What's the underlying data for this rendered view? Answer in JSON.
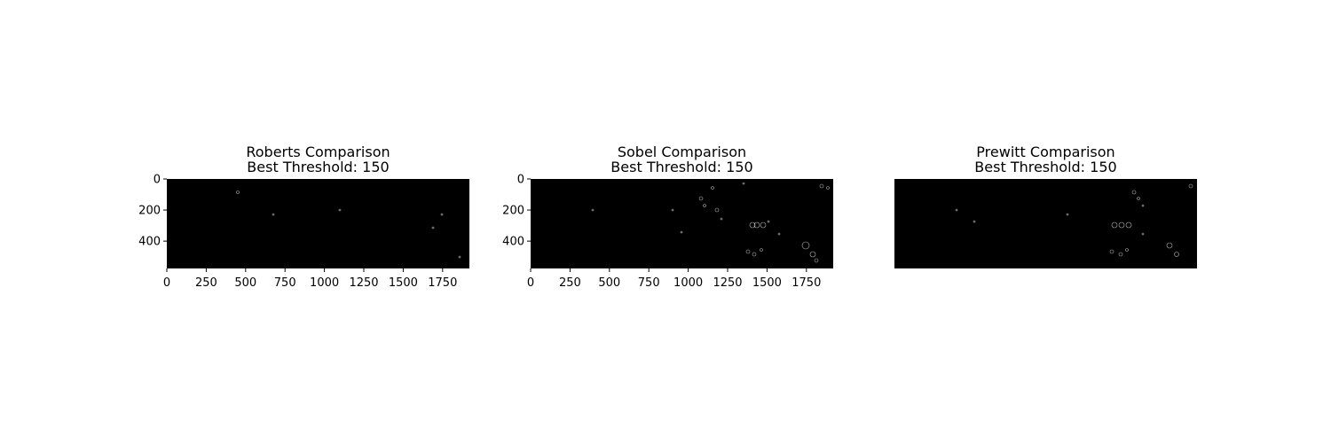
{
  "figure": {
    "background": "#ffffff",
    "image_color": "#000000",
    "edge_color": "#ffffff"
  },
  "chart_data": [
    {
      "type": "image",
      "title_line1": "Roberts Comparison",
      "title_line2": "Best Threshold: 150",
      "xlim": [
        0,
        1920
      ],
      "ylim": [
        576,
        0
      ],
      "xticks": [
        "0",
        "250",
        "500",
        "750",
        "1000",
        "1250",
        "1500",
        "1750"
      ],
      "yticks": [
        "0",
        "200",
        "400"
      ],
      "axis_visible": true,
      "edge_density": "very sparse"
    },
    {
      "type": "image",
      "title_line1": "Sobel Comparison",
      "title_line2": "Best Threshold: 150",
      "xlim": [
        0,
        1920
      ],
      "ylim": [
        576,
        0
      ],
      "xticks": [
        "0",
        "250",
        "500",
        "750",
        "1000",
        "1250",
        "1500",
        "1750"
      ],
      "yticks": [
        "0",
        "200",
        "400"
      ],
      "axis_visible": true,
      "edge_density": "moderate, right side"
    },
    {
      "type": "image",
      "title_line1": "Prewitt Comparison",
      "title_line2": "Best Threshold: 150",
      "xlim": [
        0,
        1920
      ],
      "ylim": [
        576,
        0
      ],
      "xticks": [],
      "yticks": [],
      "axis_visible": false,
      "edge_density": "moderate, right side"
    }
  ]
}
